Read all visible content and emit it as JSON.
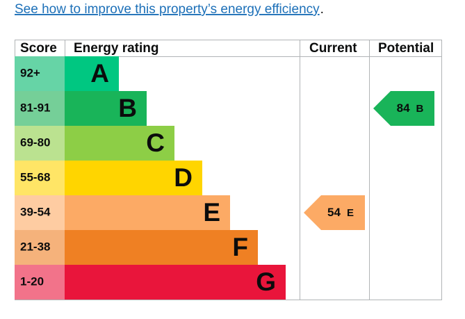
{
  "link": "See how to improve this property’s energy efficiency",
  "link_suffix": ".",
  "table": {
    "headers": [
      "Score",
      "Energy rating",
      "Current",
      "Potential"
    ],
    "rows": [
      {
        "score": "92+",
        "rating": "A"
      },
      {
        "score": "81-91",
        "rating": "B"
      },
      {
        "score": "69-80",
        "rating": "C"
      },
      {
        "score": "55-68",
        "rating": "D"
      },
      {
        "score": "39-54",
        "rating": "E"
      },
      {
        "score": "21-38",
        "rating": "F"
      },
      {
        "score": "1-20",
        "rating": "G"
      }
    ],
    "current": {
      "score": 54,
      "rating": "E"
    },
    "potential": {
      "score": 84,
      "rating": "B"
    }
  }
}
